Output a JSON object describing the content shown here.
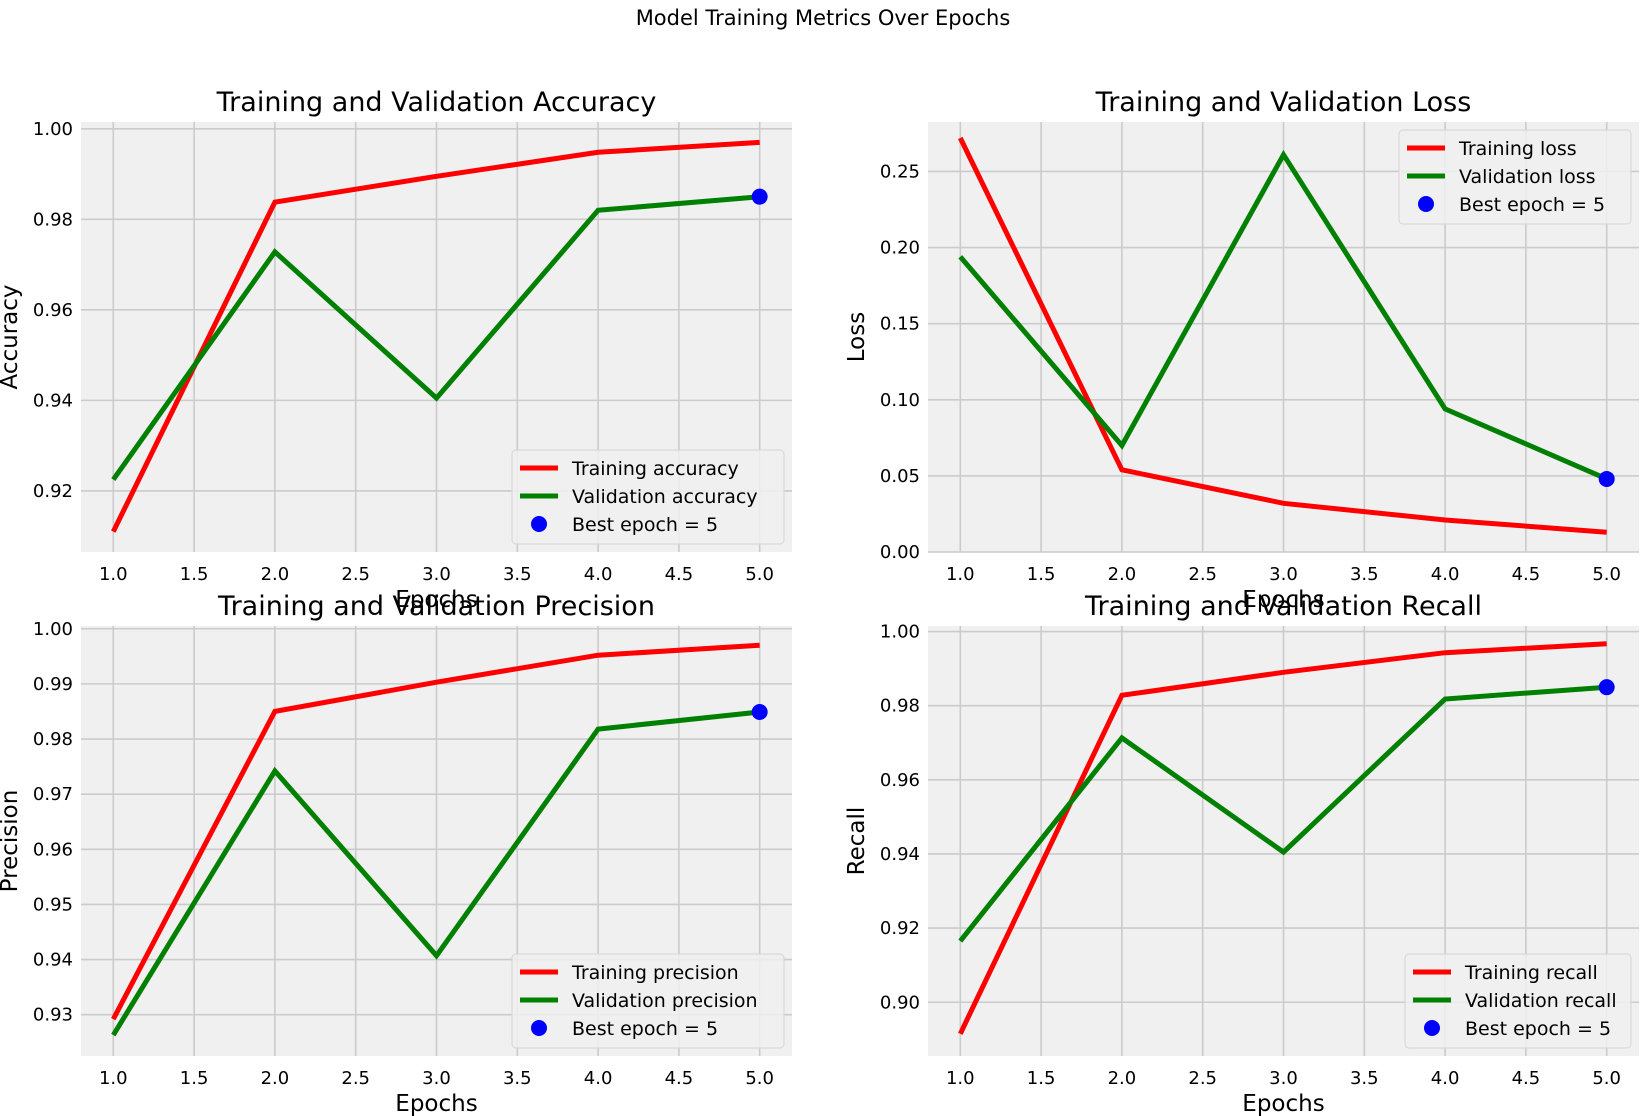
{
  "figure_title": "Model Training Metrics Over Epochs",
  "colors": {
    "training": "#ff0000",
    "validation": "#008000",
    "best": "#0000ff",
    "panel_bg": "#f0f0f0",
    "grid": "#cbcbcb"
  },
  "chart_data": [
    {
      "type": "line",
      "title": "Training and Validation Accuracy",
      "xlabel": "Epochs",
      "ylabel": "Accuracy",
      "x": [
        1,
        2,
        3,
        4,
        5
      ],
      "xlim": [
        0.8,
        5.2
      ],
      "ylim": [
        0.9065,
        1.0015
      ],
      "xticks": [
        1.0,
        1.5,
        2.0,
        2.5,
        3.0,
        3.5,
        4.0,
        4.5,
        5.0
      ],
      "xtick_labels": [
        "1.0",
        "1.5",
        "2.0",
        "2.5",
        "3.0",
        "3.5",
        "4.0",
        "4.5",
        "5.0"
      ],
      "yticks": [
        0.92,
        0.94,
        0.96,
        0.98,
        1.0
      ],
      "ytick_labels": [
        "0.92",
        "0.94",
        "0.96",
        "0.98",
        "1.00"
      ],
      "series": [
        {
          "name": "Training accuracy",
          "values": [
            0.911,
            0.9838,
            0.9895,
            0.9948,
            0.997
          ]
        },
        {
          "name": "Validation accuracy",
          "values": [
            0.9225,
            0.9728,
            0.9405,
            0.982,
            0.985
          ]
        }
      ],
      "best": {
        "label": "Best epoch = 5",
        "x": 5,
        "y": 0.985
      },
      "legend": "lower-right",
      "grid": true
    },
    {
      "type": "line",
      "title": "Training and Validation Loss",
      "xlabel": "Epochs",
      "ylabel": "Loss",
      "x": [
        1,
        2,
        3,
        4,
        5
      ],
      "xlim": [
        0.8,
        5.2
      ],
      "ylim": [
        0.0,
        0.2825
      ],
      "xticks": [
        1.0,
        1.5,
        2.0,
        2.5,
        3.0,
        3.5,
        4.0,
        4.5,
        5.0
      ],
      "xtick_labels": [
        "1.0",
        "1.5",
        "2.0",
        "2.5",
        "3.0",
        "3.5",
        "4.0",
        "4.5",
        "5.0"
      ],
      "yticks": [
        0.0,
        0.05,
        0.1,
        0.15,
        0.2,
        0.25
      ],
      "ytick_labels": [
        "0.00",
        "0.05",
        "0.10",
        "0.15",
        "0.20",
        "0.25"
      ],
      "series": [
        {
          "name": "Training loss",
          "values": [
            0.272,
            0.054,
            0.032,
            0.021,
            0.013
          ]
        },
        {
          "name": "Validation loss",
          "values": [
            0.194,
            0.07,
            0.261,
            0.094,
            0.048
          ]
        }
      ],
      "best": {
        "label": "Best epoch = 5",
        "x": 5,
        "y": 0.048
      },
      "legend": "upper-right",
      "grid": true
    },
    {
      "type": "line",
      "title": "Training and Validation Precision",
      "xlabel": "Epochs",
      "ylabel": "Precision",
      "x": [
        1,
        2,
        3,
        4,
        5
      ],
      "xlim": [
        0.8,
        5.2
      ],
      "ylim": [
        0.9225,
        1.0005
      ],
      "xticks": [
        1.0,
        1.5,
        2.0,
        2.5,
        3.0,
        3.5,
        4.0,
        4.5,
        5.0
      ],
      "xtick_labels": [
        "1.0",
        "1.5",
        "2.0",
        "2.5",
        "3.0",
        "3.5",
        "4.0",
        "4.5",
        "5.0"
      ],
      "yticks": [
        0.93,
        0.94,
        0.95,
        0.96,
        0.97,
        0.98,
        0.99,
        1.0
      ],
      "ytick_labels": [
        "0.93",
        "0.94",
        "0.95",
        "0.96",
        "0.97",
        "0.98",
        "0.99",
        "1.00"
      ],
      "series": [
        {
          "name": "Training precision",
          "values": [
            0.9292,
            0.985,
            0.9903,
            0.9952,
            0.997
          ]
        },
        {
          "name": "Validation precision",
          "values": [
            0.9263,
            0.9742,
            0.9407,
            0.9818,
            0.9849
          ]
        }
      ],
      "best": {
        "label": "Best epoch = 5",
        "x": 5,
        "y": 0.9849
      },
      "legend": "lower-right",
      "grid": true
    },
    {
      "type": "line",
      "title": "Training and Validation Recall",
      "xlabel": "Epochs",
      "ylabel": "Recall",
      "x": [
        1,
        2,
        3,
        4,
        5
      ],
      "xlim": [
        0.8,
        5.2
      ],
      "ylim": [
        0.8855,
        1.0015
      ],
      "xticks": [
        1.0,
        1.5,
        2.0,
        2.5,
        3.0,
        3.5,
        4.0,
        4.5,
        5.0
      ],
      "xtick_labels": [
        "1.0",
        "1.5",
        "2.0",
        "2.5",
        "3.0",
        "3.5",
        "4.0",
        "4.5",
        "5.0"
      ],
      "yticks": [
        0.9,
        0.92,
        0.94,
        0.96,
        0.98,
        1.0
      ],
      "ytick_labels": [
        "0.90",
        "0.92",
        "0.94",
        "0.96",
        "0.98",
        "1.00"
      ],
      "series": [
        {
          "name": "Training recall",
          "values": [
            0.8915,
            0.9828,
            0.989,
            0.9943,
            0.9967
          ]
        },
        {
          "name": "Validation recall",
          "values": [
            0.9165,
            0.9713,
            0.9405,
            0.9818,
            0.985
          ]
        }
      ],
      "best": {
        "label": "Best epoch = 5",
        "x": 5,
        "y": 0.985
      },
      "legend": "lower-right",
      "grid": true
    }
  ]
}
